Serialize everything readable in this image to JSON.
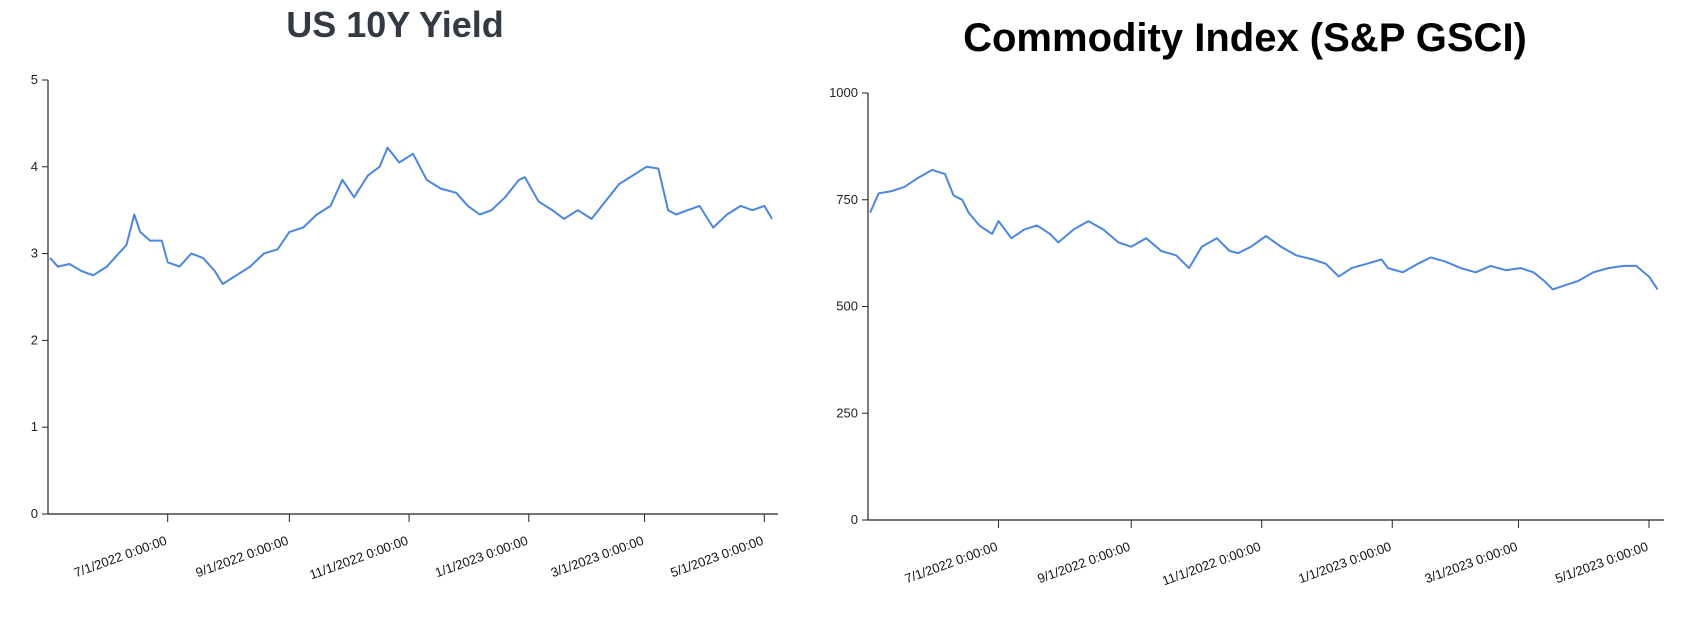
{
  "chart_data": [
    {
      "type": "line",
      "title": "US 10Y Yield",
      "xlabel": "",
      "ylabel": "",
      "ylim": [
        0,
        5
      ],
      "yticks": [
        0,
        1,
        2,
        3,
        4,
        5
      ],
      "xlim": [
        "2022-05-01",
        "2023-05-08"
      ],
      "xticks": [
        {
          "date": "2022-07-01",
          "label": "7/1/2022 0:00:00"
        },
        {
          "date": "2022-09-01",
          "label": "9/1/2022 0:00:00"
        },
        {
          "date": "2022-11-01",
          "label": "11/1/2022 0:00:00"
        },
        {
          "date": "2023-01-01",
          "label": "1/1/2023 0:00:00"
        },
        {
          "date": "2023-03-01",
          "label": "3/1/2023 0:00:00"
        },
        {
          "date": "2023-05-01",
          "label": "5/1/2023 0:00:00"
        }
      ],
      "grid": false,
      "series": [
        {
          "color": "#4a86e8",
          "x": [
            "2022-05-02",
            "2022-05-06",
            "2022-05-12",
            "2022-05-18",
            "2022-05-24",
            "2022-05-31",
            "2022-06-06",
            "2022-06-10",
            "2022-06-14",
            "2022-06-17",
            "2022-06-22",
            "2022-06-28",
            "2022-07-01",
            "2022-07-07",
            "2022-07-13",
            "2022-07-19",
            "2022-07-25",
            "2022-07-29",
            "2022-08-05",
            "2022-08-12",
            "2022-08-19",
            "2022-08-26",
            "2022-09-01",
            "2022-09-08",
            "2022-09-15",
            "2022-09-22",
            "2022-09-28",
            "2022-10-04",
            "2022-10-11",
            "2022-10-17",
            "2022-10-21",
            "2022-10-27",
            "2022-11-03",
            "2022-11-10",
            "2022-11-17",
            "2022-11-25",
            "2022-12-01",
            "2022-12-07",
            "2022-12-13",
            "2022-12-20",
            "2022-12-27",
            "2022-12-30",
            "2023-01-06",
            "2023-01-13",
            "2023-01-19",
            "2023-01-26",
            "2023-02-02",
            "2023-02-09",
            "2023-02-16",
            "2023-02-23",
            "2023-03-02",
            "2023-03-08",
            "2023-03-13",
            "2023-03-17",
            "2023-03-23",
            "2023-03-29",
            "2023-04-05",
            "2023-04-12",
            "2023-04-19",
            "2023-04-25",
            "2023-05-01",
            "2023-05-05"
          ],
          "y": [
            2.95,
            2.85,
            2.88,
            2.8,
            2.75,
            2.85,
            3.0,
            3.1,
            3.45,
            3.25,
            3.15,
            3.15,
            2.9,
            2.85,
            3.0,
            2.95,
            2.8,
            2.65,
            2.75,
            2.85,
            3.0,
            3.05,
            3.25,
            3.3,
            3.45,
            3.55,
            3.85,
            3.65,
            3.9,
            4.0,
            4.22,
            4.05,
            4.15,
            3.85,
            3.75,
            3.7,
            3.55,
            3.45,
            3.5,
            3.65,
            3.85,
            3.88,
            3.6,
            3.5,
            3.4,
            3.5,
            3.4,
            3.6,
            3.8,
            3.9,
            4.0,
            3.98,
            3.5,
            3.45,
            3.5,
            3.55,
            3.3,
            3.45,
            3.55,
            3.5,
            3.55,
            3.4
          ]
        }
      ]
    },
    {
      "type": "line",
      "title": "Commodity Index (S&P GSCI)",
      "xlabel": "",
      "ylabel": "",
      "ylim": [
        0,
        1000
      ],
      "yticks": [
        0,
        250,
        500,
        750,
        1000
      ],
      "xlim": [
        "2022-05-01",
        "2023-05-08"
      ],
      "xticks": [
        {
          "date": "2022-07-01",
          "label": "7/1/2022 0:00:00"
        },
        {
          "date": "2022-09-01",
          "label": "9/1/2022 0:00:00"
        },
        {
          "date": "2022-11-01",
          "label": "11/1/2022 0:00:00"
        },
        {
          "date": "2023-01-01",
          "label": "1/1/2023 0:00:00"
        },
        {
          "date": "2023-03-01",
          "label": "3/1/2023 0:00:00"
        },
        {
          "date": "2023-05-01",
          "label": "5/1/2023 0:00:00"
        }
      ],
      "grid": false,
      "series": [
        {
          "color": "#4a86e8",
          "x": [
            "2022-05-02",
            "2022-05-06",
            "2022-05-12",
            "2022-05-18",
            "2022-05-24",
            "2022-05-31",
            "2022-06-06",
            "2022-06-10",
            "2022-06-14",
            "2022-06-17",
            "2022-06-22",
            "2022-06-28",
            "2022-07-01",
            "2022-07-07",
            "2022-07-13",
            "2022-07-19",
            "2022-07-25",
            "2022-07-29",
            "2022-08-05",
            "2022-08-12",
            "2022-08-19",
            "2022-08-26",
            "2022-09-01",
            "2022-09-08",
            "2022-09-15",
            "2022-09-22",
            "2022-09-28",
            "2022-10-04",
            "2022-10-11",
            "2022-10-17",
            "2022-10-21",
            "2022-10-27",
            "2022-11-03",
            "2022-11-10",
            "2022-11-17",
            "2022-11-25",
            "2022-12-01",
            "2022-12-07",
            "2022-12-13",
            "2022-12-20",
            "2022-12-27",
            "2022-12-30",
            "2023-01-06",
            "2023-01-13",
            "2023-01-19",
            "2023-01-26",
            "2023-02-02",
            "2023-02-09",
            "2023-02-16",
            "2023-02-23",
            "2023-03-02",
            "2023-03-08",
            "2023-03-13",
            "2023-03-17",
            "2023-03-23",
            "2023-03-29",
            "2023-04-05",
            "2023-04-12",
            "2023-04-19",
            "2023-04-25",
            "2023-05-01",
            "2023-05-05"
          ],
          "y": [
            720,
            765,
            770,
            780,
            800,
            820,
            810,
            760,
            750,
            720,
            690,
            670,
            700,
            660,
            680,
            690,
            670,
            650,
            680,
            700,
            680,
            650,
            640,
            660,
            630,
            620,
            590,
            640,
            660,
            630,
            625,
            640,
            665,
            640,
            620,
            610,
            600,
            570,
            590,
            600,
            610,
            590,
            580,
            600,
            615,
            605,
            590,
            580,
            595,
            585,
            590,
            580,
            560,
            540,
            550,
            560,
            580,
            590,
            595,
            595,
            570,
            540
          ]
        }
      ]
    }
  ]
}
